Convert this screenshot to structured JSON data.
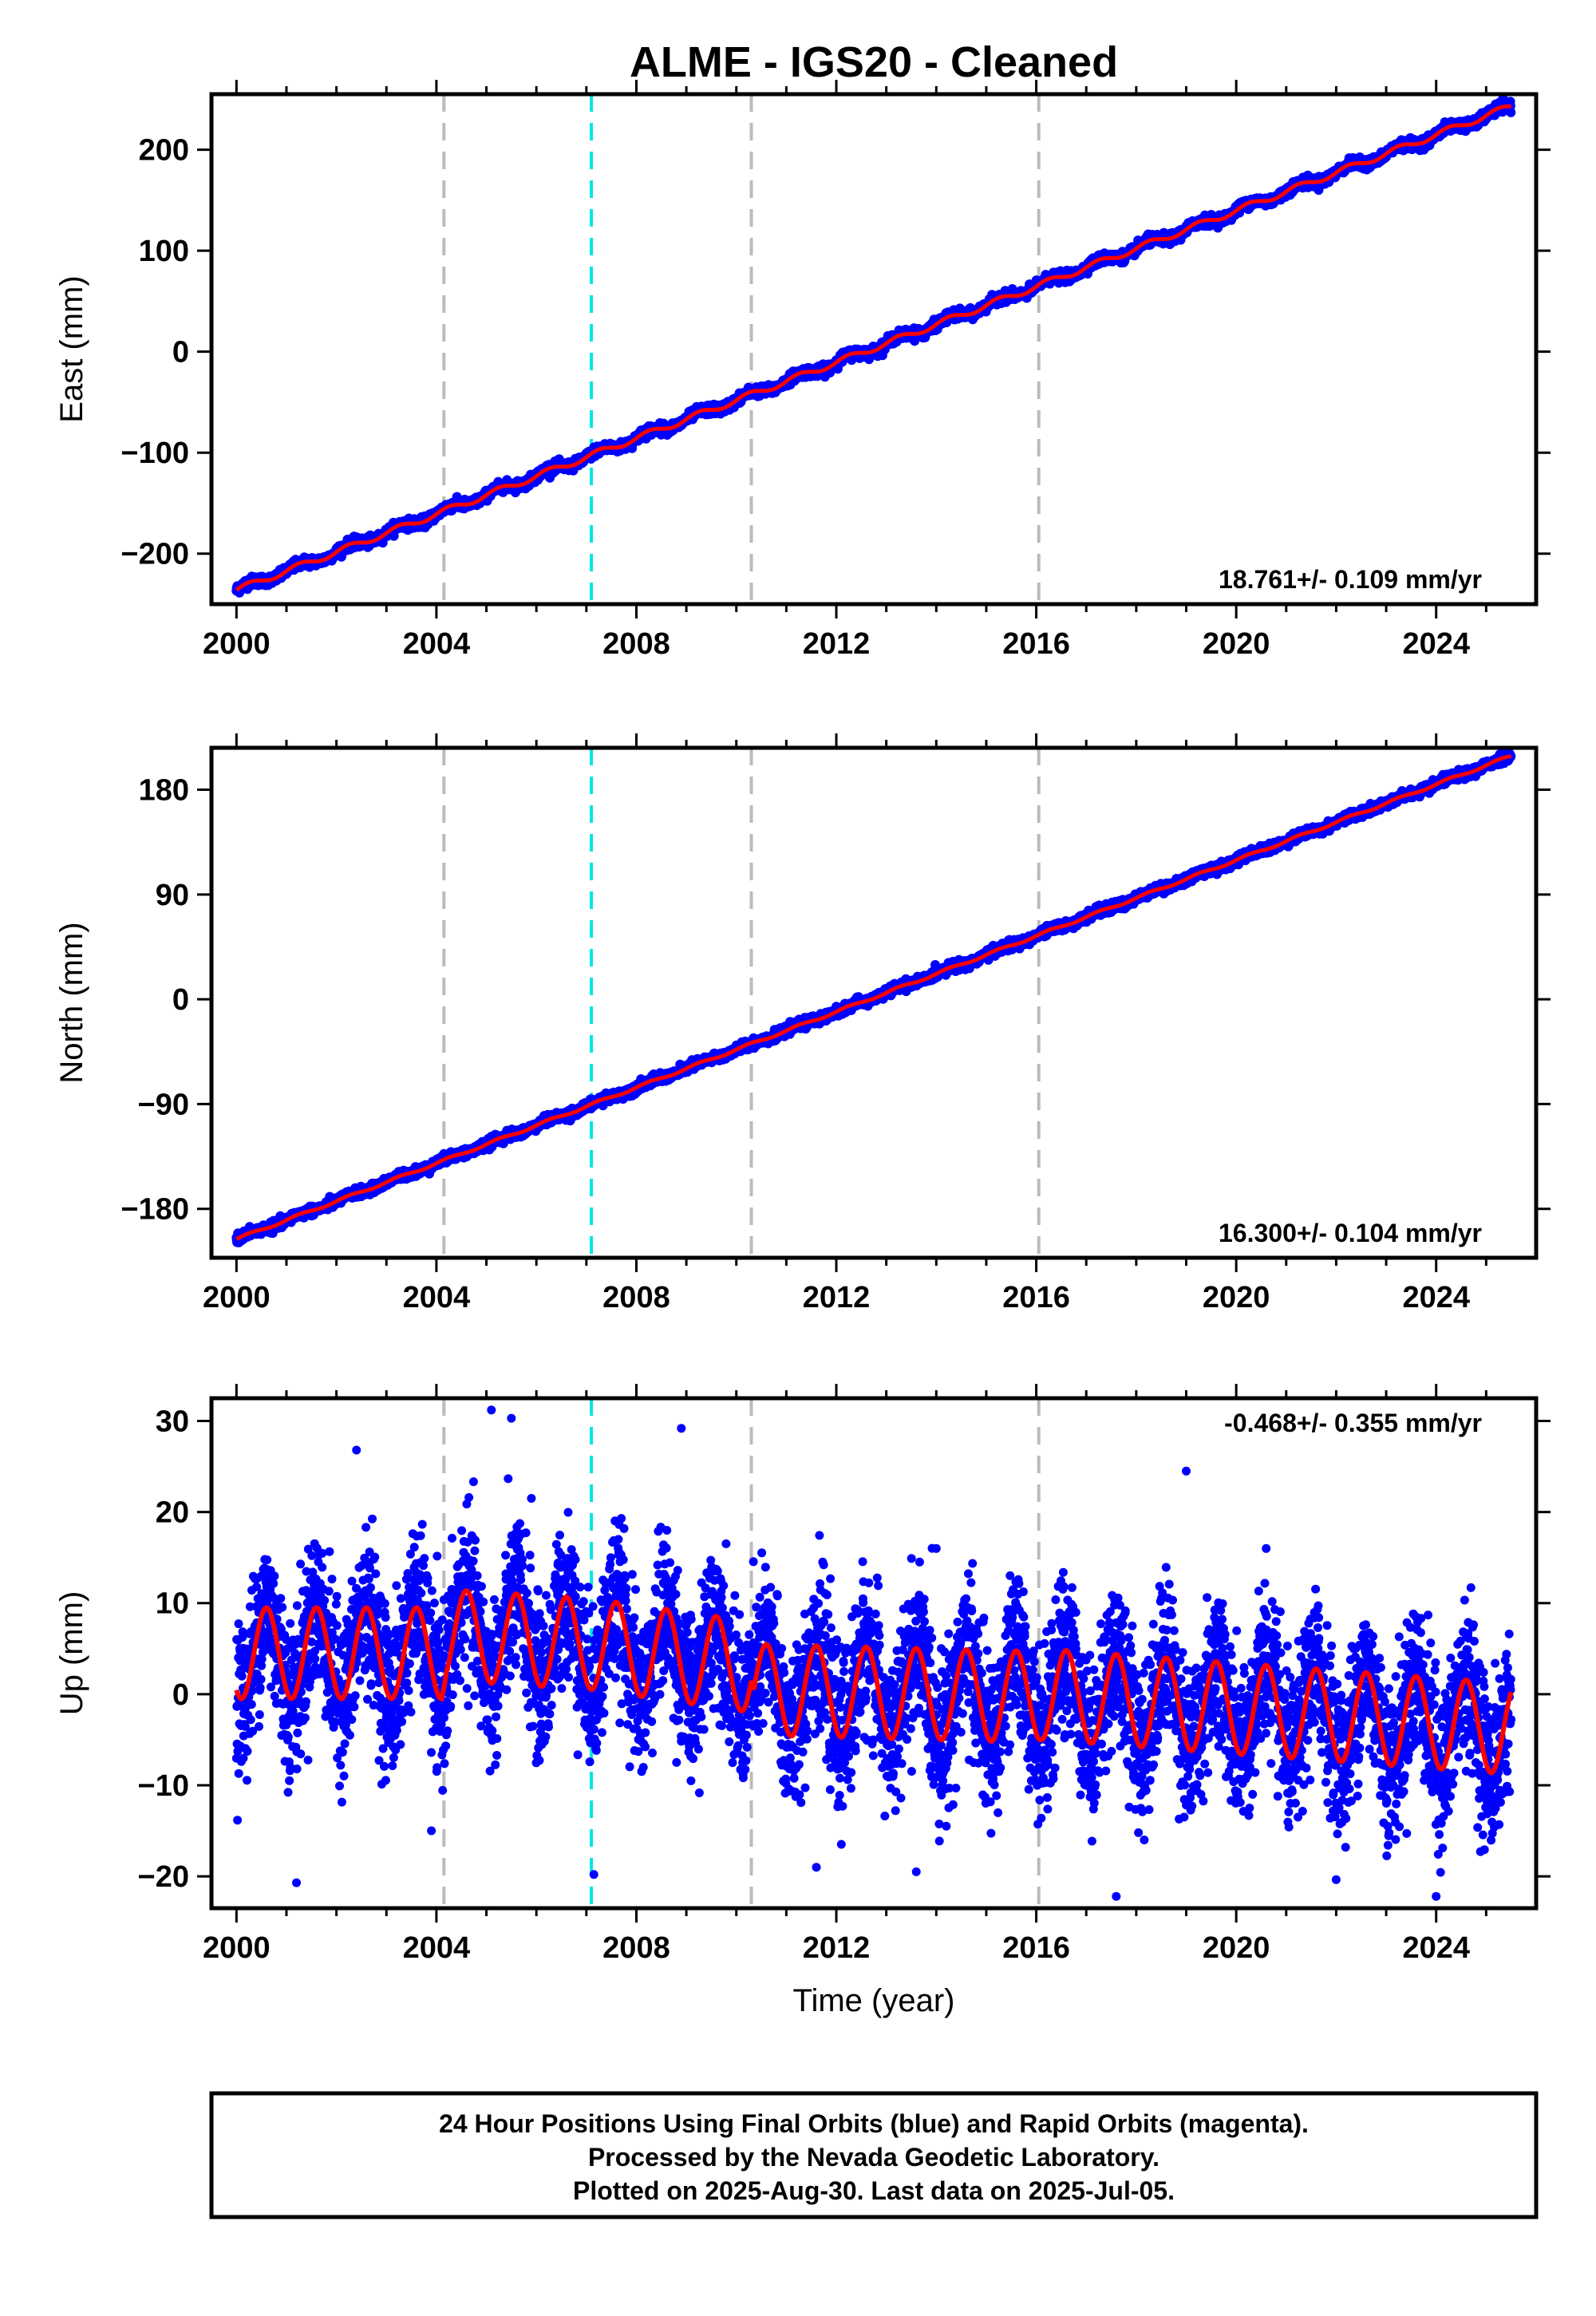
{
  "figure": {
    "title": "ALME  - IGS20 - Cleaned",
    "xlabel": "Time (year)",
    "caption": [
      "24 Hour Positions Using Final Orbits (blue) and Rapid Orbits (magenta).",
      "Processed by the Nevada Geodetic Laboratory.",
      "Plotted on 2025-Aug-30. Last data on 2025-Jul-05."
    ]
  },
  "chart_data": [
    {
      "type": "scatter",
      "component": "east",
      "ylabel": "East (mm)",
      "xlim": [
        1999.5,
        2026.0
      ],
      "ylim": [
        -250,
        255
      ],
      "xticks": [
        2000,
        2004,
        2008,
        2012,
        2016,
        2020,
        2024
      ],
      "yticks": [
        -200,
        -100,
        0,
        100,
        200
      ],
      "ytick_labels": [
        "−200",
        "−100",
        "0",
        "100",
        "200"
      ],
      "rate_label": "18.761+/- 0.109 mm/yr",
      "model": {
        "start_year": 2000.0,
        "end_year": 2025.5,
        "start_value": -236,
        "end_value": 243,
        "rate": 18.761,
        "annual_amplitude": 3.0
      },
      "equipment_changes": [
        2004.15,
        2010.3,
        2016.05
      ],
      "earthquake_events": [
        2007.1
      ],
      "series_colors": {
        "data": "#0000ff",
        "model": "#ff0000"
      }
    },
    {
      "type": "scatter",
      "component": "north",
      "ylabel": "North (mm)",
      "xlim": [
        1999.5,
        2026.0
      ],
      "ylim": [
        -222,
        216
      ],
      "xticks": [
        2000,
        2004,
        2008,
        2012,
        2016,
        2020,
        2024
      ],
      "yticks": [
        -180,
        -90,
        0,
        90,
        180
      ],
      "ytick_labels": [
        "−180",
        "−90",
        "0",
        "90",
        "180"
      ],
      "rate_label": "16.300+/- 0.104 mm/yr",
      "model": {
        "start_year": 2000.0,
        "end_year": 2025.5,
        "start_value": -206,
        "end_value": 209,
        "rate": 16.3,
        "annual_amplitude": 1.0
      },
      "equipment_changes": [
        2004.15,
        2010.3,
        2016.05
      ],
      "earthquake_events": [
        2007.1
      ],
      "series_colors": {
        "data": "#0000ff",
        "model": "#ff0000"
      }
    },
    {
      "type": "scatter",
      "component": "up",
      "ylabel": "Up (mm)",
      "xlim": [
        1999.5,
        2026.0
      ],
      "ylim": [
        -23.5,
        32.5
      ],
      "xticks": [
        2000,
        2004,
        2008,
        2012,
        2016,
        2020,
        2024
      ],
      "yticks": [
        -20,
        -10,
        0,
        10,
        20,
        30
      ],
      "ytick_labels": [
        "−20",
        "−10",
        "0",
        "10",
        "20",
        "30"
      ],
      "rate_label": "-0.468+/- 0.355 mm/yr",
      "model": {
        "start_year": 2000.0,
        "end_year": 2025.5,
        "annual_amplitude": 5.0,
        "annual_peak_phase": 0.6,
        "mean_levels": [
          [
            2000,
            4.5
          ],
          [
            2004.1,
            4.5
          ],
          [
            2004.2,
            6.5
          ],
          [
            2007.1,
            5.5
          ],
          [
            2010.3,
            3.0
          ],
          [
            2010.35,
            0.5
          ],
          [
            2016.0,
            -0.3
          ],
          [
            2016.1,
            0.0
          ],
          [
            2025.5,
            -3.8
          ]
        ]
      },
      "scatter_sigma": 4.2,
      "outliers": [
        [
          2001.2,
          -20.7
        ],
        [
          2005.1,
          31.2
        ],
        [
          2005.5,
          30.3
        ],
        [
          2008.9,
          29.2
        ],
        [
          2007.15,
          -19.8
        ],
        [
          2002.4,
          26.8
        ],
        [
          2019.0,
          24.5
        ],
        [
          2017.6,
          -22.2
        ],
        [
          2024.0,
          -22.2
        ],
        [
          2011.6,
          -19.0
        ],
        [
          2014.0,
          16.0
        ],
        [
          2020.6,
          16.0
        ],
        [
          2003.9,
          -15.0
        ],
        [
          2005.9,
          21.5
        ],
        [
          2013.6,
          -19.5
        ]
      ],
      "equipment_changes": [
        2004.15,
        2010.3,
        2016.05
      ],
      "earthquake_events": [
        2007.1
      ],
      "series_colors": {
        "data": "#0000ff",
        "model": "#ff0000"
      }
    }
  ],
  "colors": {
    "frame": "#000000",
    "equipment_line": "#bbbbbb",
    "earthquake_line": "#00e5e5"
  }
}
